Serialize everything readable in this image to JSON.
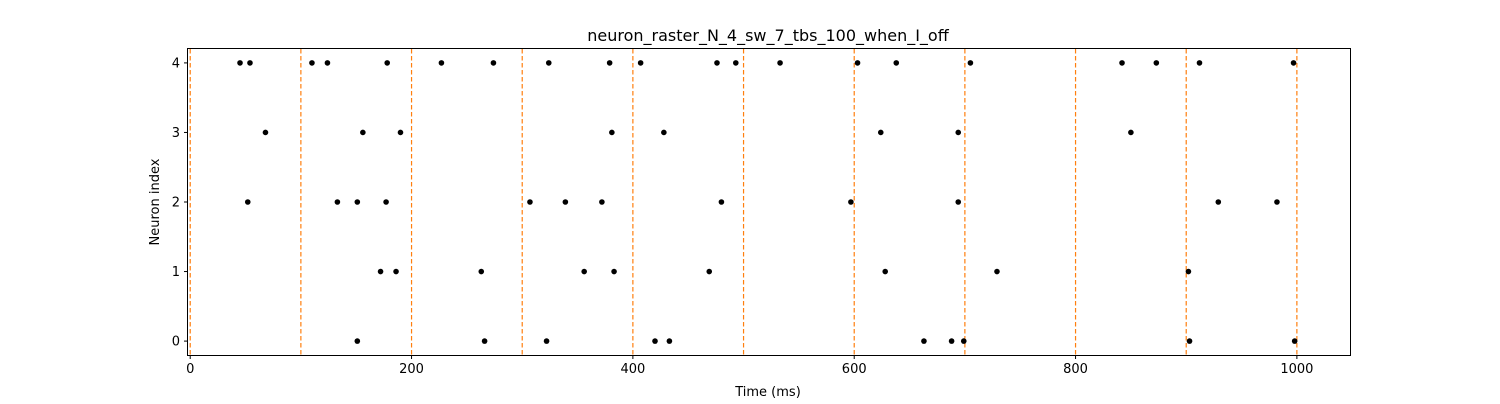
{
  "chart_data": {
    "type": "scatter",
    "title": "neuron_raster_N_4_sw_7_tbs_100_when_I_off",
    "xlabel": "Time (ms)",
    "ylabel": "Neuron index",
    "xlim": [
      -2,
      1048
    ],
    "ylim": [
      -0.2,
      4.2
    ],
    "xticks": [
      0,
      200,
      400,
      600,
      800,
      1000
    ],
    "xtick_labels": [
      "0",
      "200",
      "400",
      "600",
      "800",
      "1000"
    ],
    "yticks": [
      0,
      1,
      2,
      3,
      4
    ],
    "ytick_labels": [
      "0",
      "1",
      "2",
      "3",
      "4"
    ],
    "grid": false,
    "marker_color": "#000000",
    "vline_color": "#ff7f0e",
    "vlines": [
      0,
      100,
      200,
      300,
      400,
      500,
      600,
      700,
      800,
      900,
      1000
    ],
    "spikes": [
      {
        "neuron": 4,
        "times": [
          45,
          54,
          110,
          124,
          178,
          227,
          274,
          324,
          379,
          407,
          476,
          493,
          533,
          603,
          638,
          705,
          842,
          873,
          912,
          997
        ]
      },
      {
        "neuron": 3,
        "times": [
          68,
          156,
          190,
          381,
          428,
          624,
          694,
          850
        ]
      },
      {
        "neuron": 2,
        "times": [
          52,
          133,
          151,
          177,
          307,
          339,
          372,
          480,
          597,
          694,
          929,
          982
        ]
      },
      {
        "neuron": 1,
        "times": [
          172,
          186,
          263,
          356,
          383,
          469,
          628,
          729,
          902
        ]
      },
      {
        "neuron": 0,
        "times": [
          151,
          266,
          322,
          420,
          433,
          663,
          688,
          699,
          903,
          998
        ]
      }
    ]
  }
}
